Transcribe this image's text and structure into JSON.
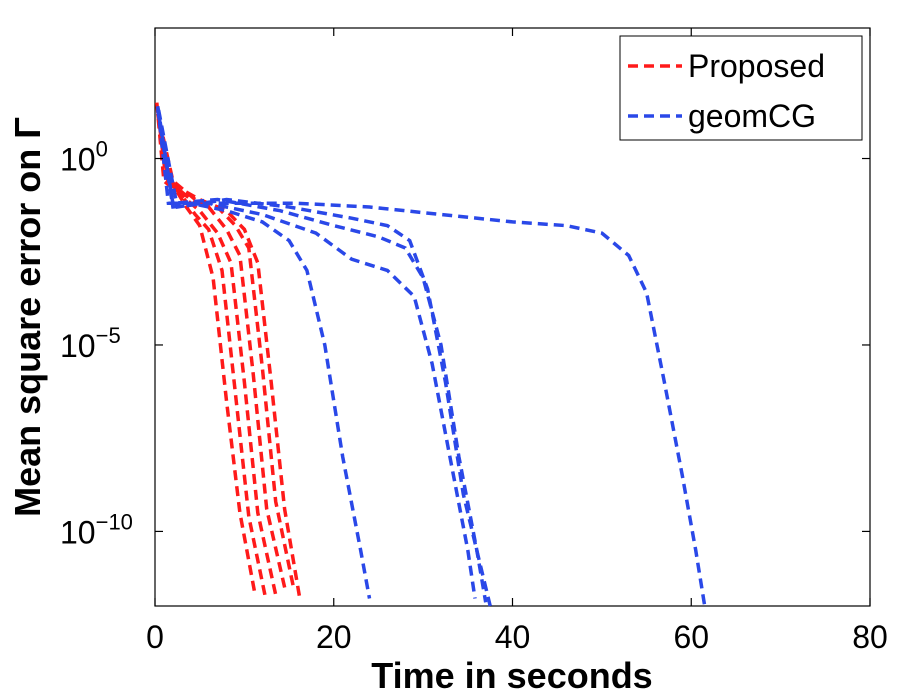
{
  "chart_data": {
    "type": "line",
    "xlabel": "Time in seconds",
    "ylabel": "Mean square error on Γ",
    "xlim": [
      0,
      80
    ],
    "xticks": [
      0,
      20,
      40,
      60,
      80
    ],
    "ylim_log10": [
      -12,
      3.5
    ],
    "yscale": "log",
    "yticks": [
      {
        "exp": 0,
        "base": "10",
        "sup": "0"
      },
      {
        "exp": -5,
        "base": "10",
        "sup": "−5"
      },
      {
        "exp": -10,
        "base": "10",
        "sup": "−10"
      }
    ],
    "grid": false,
    "legend_position": "top-right",
    "colors": {
      "Proposed": "#ff1a1a",
      "geomCG": "#2a48e8"
    },
    "series": [
      {
        "name": "Proposed",
        "runs": [
          [
            [
              0.2,
              1.5
            ],
            [
              1,
              -0.6
            ],
            [
              2.5,
              -0.9
            ],
            [
              3.5,
              -1.3
            ],
            [
              5,
              -1.8
            ],
            [
              6.5,
              -3.2
            ],
            [
              8,
              -6.5
            ],
            [
              9.5,
              -9.5
            ],
            [
              11.2,
              -11.7
            ]
          ],
          [
            [
              0.3,
              1.3
            ],
            [
              1.2,
              -0.5
            ],
            [
              3,
              -1.0
            ],
            [
              4.5,
              -1.5
            ],
            [
              6,
              -1.9
            ],
            [
              7.5,
              -3.0
            ],
            [
              9,
              -6.3
            ],
            [
              10.5,
              -9.6
            ],
            [
              12.3,
              -11.7
            ]
          ],
          [
            [
              0.3,
              1.2
            ],
            [
              1.5,
              -0.5
            ],
            [
              3.5,
              -1.1
            ],
            [
              5,
              -1.4
            ],
            [
              7,
              -2.0
            ],
            [
              8.5,
              -2.8
            ],
            [
              10,
              -6.0
            ],
            [
              11.5,
              -9.5
            ],
            [
              13.5,
              -11.7
            ]
          ],
          [
            [
              0.4,
              1.1
            ],
            [
              1.5,
              -0.6
            ],
            [
              4,
              -1.1
            ],
            [
              6,
              -1.3
            ],
            [
              8,
              -1.9
            ],
            [
              9.5,
              -2.6
            ],
            [
              11,
              -5.8
            ],
            [
              12.5,
              -9.4
            ],
            [
              14.6,
              -11.6
            ]
          ],
          [
            [
              0.5,
              1.0
            ],
            [
              2,
              -0.6
            ],
            [
              4.5,
              -1.1
            ],
            [
              7,
              -1.3
            ],
            [
              9,
              -1.8
            ],
            [
              10.5,
              -2.4
            ],
            [
              12,
              -5.6
            ],
            [
              13.5,
              -9.2
            ],
            [
              15.5,
              -11.5
            ]
          ],
          [
            [
              0.5,
              1.0
            ],
            [
              2,
              -0.7
            ],
            [
              5,
              -1.1
            ],
            [
              8,
              -1.4
            ],
            [
              10,
              -1.9
            ],
            [
              11.5,
              -2.8
            ],
            [
              13,
              -6.0
            ],
            [
              14.5,
              -9.4
            ],
            [
              16.2,
              -11.8
            ]
          ]
        ]
      },
      {
        "name": "geomCG",
        "runs": [
          [
            [
              0.3,
              1.4
            ],
            [
              1.5,
              -1.2
            ],
            [
              4,
              -1.2
            ],
            [
              8,
              -1.4
            ],
            [
              12,
              -1.7
            ],
            [
              15,
              -2.2
            ],
            [
              17,
              -3.0
            ],
            [
              19,
              -5.0
            ],
            [
              21,
              -8.0
            ],
            [
              23,
              -10.5
            ],
            [
              24,
              -11.8
            ]
          ],
          [
            [
              0.3,
              1.3
            ],
            [
              2,
              -1.3
            ],
            [
              6,
              -1.2
            ],
            [
              12,
              -1.5
            ],
            [
              18,
              -2.0
            ],
            [
              22,
              -2.7
            ],
            [
              26,
              -3.0
            ],
            [
              29,
              -3.7
            ],
            [
              31,
              -5.5
            ],
            [
              33,
              -8.0
            ],
            [
              35,
              -10.5
            ],
            [
              35.8,
              -11.8
            ]
          ],
          [
            [
              0.4,
              1.2
            ],
            [
              2,
              -1.2
            ],
            [
              7,
              -1.1
            ],
            [
              14,
              -1.4
            ],
            [
              20,
              -1.8
            ],
            [
              25,
              -2.1
            ],
            [
              28,
              -2.4
            ],
            [
              30,
              -3.2
            ],
            [
              32,
              -5.0
            ],
            [
              34,
              -8.0
            ],
            [
              36,
              -10.5
            ],
            [
              37,
              -11.9
            ]
          ],
          [
            [
              0.4,
              1.3
            ],
            [
              2.5,
              -1.3
            ],
            [
              8,
              -1.1
            ],
            [
              15,
              -1.3
            ],
            [
              22,
              -1.6
            ],
            [
              26,
              -1.8
            ],
            [
              28.5,
              -2.2
            ],
            [
              30.5,
              -3.5
            ],
            [
              32.5,
              -6.0
            ],
            [
              34.5,
              -9.0
            ],
            [
              36.5,
              -11.0
            ],
            [
              37.5,
              -12.0
            ]
          ],
          [
            [
              0.3,
              1.4
            ],
            [
              2,
              -1.2
            ],
            [
              8,
              -1.2
            ],
            [
              16,
              -1.2
            ],
            [
              24,
              -1.3
            ],
            [
              32,
              -1.5
            ],
            [
              40,
              -1.7
            ],
            [
              46,
              -1.8
            ],
            [
              50,
              -2.0
            ],
            [
              53,
              -2.6
            ],
            [
              55,
              -3.6
            ],
            [
              57,
              -6.0
            ],
            [
              59,
              -8.5
            ],
            [
              60.5,
              -10.5
            ],
            [
              61.5,
              -12.0
            ]
          ]
        ]
      }
    ]
  }
}
